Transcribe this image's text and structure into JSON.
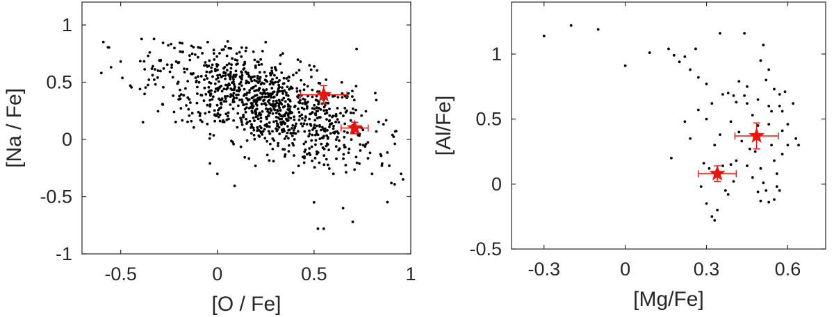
{
  "chart_data": [
    {
      "type": "scatter",
      "xlabel": "[O / Fe]",
      "ylabel": "[Na / Fe]",
      "xlim": [
        -0.7,
        1.0
      ],
      "ylim": [
        -1.0,
        1.2
      ],
      "xticks": [
        -0.5,
        0,
        0.5,
        1
      ],
      "xtick_labels": [
        "-0.5",
        "0",
        "0.5",
        "1"
      ],
      "yticks": [
        -1,
        -0.5,
        0,
        0.5,
        1
      ],
      "ytick_labels": [
        "-1",
        "-0.5",
        "0",
        "0.5",
        "1"
      ],
      "grid": false,
      "series": [
        {
          "marker": "dot",
          "color": "#000000",
          "count": 1000,
          "description_only": false,
          "sample_points": [
            [
              -0.6,
              0.58
            ],
            [
              -0.55,
              0.63
            ],
            [
              -0.5,
              0.68
            ],
            [
              -0.45,
              0.47
            ],
            [
              -0.4,
              0.44
            ],
            [
              -0.35,
              0.76
            ],
            [
              -0.3,
              0.69
            ],
            [
              -0.2,
              0.35
            ],
            [
              -0.1,
              0.55
            ],
            [
              -0.05,
              0.85
            ],
            [
              0.05,
              0.73
            ],
            [
              0.1,
              0.75
            ],
            [
              0.15,
              0.8
            ],
            [
              0.25,
              0.85
            ],
            [
              0.3,
              0.5
            ],
            [
              0.4,
              0.1
            ],
            [
              0.45,
              -0.15
            ],
            [
              0.5,
              -0.55
            ],
            [
              0.52,
              -0.78
            ],
            [
              0.55,
              -0.78
            ],
            [
              0.6,
              -0.3
            ],
            [
              0.65,
              -0.6
            ],
            [
              0.7,
              -0.72
            ],
            [
              0.72,
              0.79
            ],
            [
              0.8,
              -0.3
            ],
            [
              0.92,
              0.07
            ],
            [
              0.95,
              -0.3
            ],
            [
              0.96,
              -0.35
            ],
            [
              0.9,
              -0.38
            ],
            [
              0.0,
              -0.3
            ]
          ]
        },
        {
          "marker": "star-errorbar",
          "color": "#e8140f",
          "points": [
            {
              "x": 0.55,
              "y": 0.39,
              "xerr": 0.12,
              "yerr": 0.08
            },
            {
              "x": 0.71,
              "y": 0.1,
              "xerr": 0.07,
              "yerr": 0.05
            }
          ]
        }
      ]
    },
    {
      "type": "scatter",
      "xlabel": "[Mg/Fe]",
      "ylabel": "[Al/Fe]",
      "xlim": [
        -0.42,
        0.74
      ],
      "ylim": [
        -0.5,
        1.4
      ],
      "xticks": [
        -0.3,
        0,
        0.3,
        0.6
      ],
      "xtick_labels": [
        "-0.3",
        "0",
        "0.3",
        "0.6"
      ],
      "yticks": [
        -0.5,
        0,
        0.5,
        1
      ],
      "ytick_labels": [
        "-0.5",
        "0",
        "0.5",
        "1"
      ],
      "grid": false,
      "series": [
        {
          "marker": "dot",
          "color": "#000000",
          "points": [
            [
              -0.3,
              1.14
            ],
            [
              -0.2,
              1.22
            ],
            [
              -0.1,
              1.19
            ],
            [
              0.0,
              0.91
            ],
            [
              0.09,
              1.01
            ],
            [
              0.16,
              1.04
            ],
            [
              0.18,
              0.99
            ],
            [
              0.2,
              0.94
            ],
            [
              0.17,
              0.2
            ],
            [
              0.22,
              0.98
            ],
            [
              0.24,
              0.88
            ],
            [
              0.26,
              1.04
            ],
            [
              0.27,
              0.82
            ],
            [
              0.3,
              0.77
            ],
            [
              0.32,
              0.62
            ],
            [
              0.3,
              0.5
            ],
            [
              0.33,
              0.3
            ],
            [
              0.35,
              1.16
            ],
            [
              0.36,
              0.69
            ],
            [
              0.38,
              0.7
            ],
            [
              0.4,
              0.68
            ],
            [
              0.44,
              1.16
            ],
            [
              0.42,
              0.79
            ],
            [
              0.44,
              0.68
            ],
            [
              0.45,
              0.62
            ],
            [
              0.47,
              0.53
            ],
            [
              0.49,
              0.45
            ],
            [
              0.5,
              0.95
            ],
            [
              0.51,
              1.07
            ],
            [
              0.52,
              0.8
            ],
            [
              0.53,
              0.6
            ],
            [
              0.53,
              0.46
            ],
            [
              0.54,
              0.3
            ],
            [
              0.55,
              0.18
            ],
            [
              0.56,
              0.08
            ],
            [
              0.56,
              -0.02
            ],
            [
              0.55,
              -0.12
            ],
            [
              0.57,
              0.69
            ],
            [
              0.58,
              0.56
            ],
            [
              0.58,
              0.41
            ],
            [
              0.6,
              0.3
            ],
            [
              0.62,
              0.62
            ],
            [
              0.63,
              0.35
            ],
            [
              0.64,
              0.3
            ],
            [
              0.59,
              0.71
            ],
            [
              0.48,
              0.25
            ],
            [
              0.5,
              0.12
            ],
            [
              0.51,
              0.01
            ],
            [
              0.52,
              -0.05
            ],
            [
              0.46,
              0.27
            ],
            [
              0.45,
              0.14
            ],
            [
              0.47,
              0.05
            ],
            [
              0.49,
              -0.06
            ],
            [
              0.5,
              -0.13
            ],
            [
              0.53,
              -0.14
            ],
            [
              0.42,
              0.4
            ],
            [
              0.43,
              0.33
            ],
            [
              0.41,
              0.18
            ],
            [
              0.39,
              0.15
            ],
            [
              0.4,
              0.02
            ],
            [
              0.37,
              -0.05
            ],
            [
              0.38,
              -0.08
            ],
            [
              0.31,
              0.12
            ],
            [
              0.29,
              0.16
            ],
            [
              0.28,
              -0.02
            ],
            [
              0.3,
              -0.15
            ],
            [
              0.32,
              -0.25
            ],
            [
              0.33,
              -0.28
            ],
            [
              0.34,
              -0.2
            ],
            [
              0.36,
              0.14
            ],
            [
              0.24,
              0.35
            ],
            [
              0.22,
              0.48
            ],
            [
              0.39,
              0.48
            ],
            [
              0.35,
              0.38
            ],
            [
              0.27,
              0.57
            ],
            [
              0.41,
              0.63
            ],
            [
              0.45,
              0.75
            ],
            [
              0.49,
              0.65
            ],
            [
              0.53,
              0.88
            ],
            [
              0.55,
              0.73
            ],
            [
              0.57,
              0.6
            ],
            [
              0.6,
              0.46
            ],
            [
              0.58,
              0.23
            ],
            [
              0.57,
              -0.05
            ],
            [
              0.54,
              0.56
            ]
          ]
        },
        {
          "marker": "star-errorbar",
          "color": "#e8140f",
          "points": [
            {
              "x": 0.485,
              "y": 0.37,
              "xerr": 0.08,
              "yerr": 0.1
            },
            {
              "x": 0.34,
              "y": 0.08,
              "xerr": 0.07,
              "yerr": 0.06
            }
          ]
        }
      ]
    }
  ]
}
